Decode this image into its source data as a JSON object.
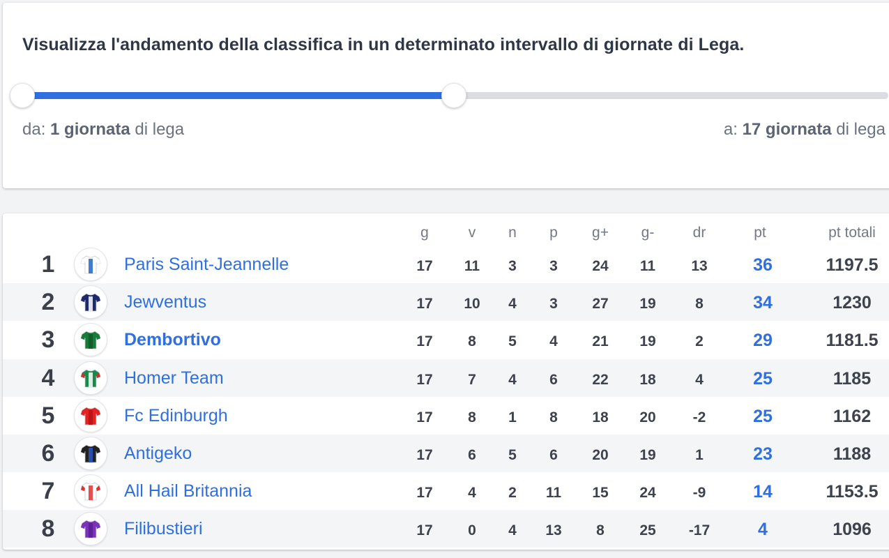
{
  "range": {
    "title": "Visualizza l'andamento della classifica in un determinato intervallo di giornate di Lega.",
    "from_prefix": "da: ",
    "from_value": "1 giornata",
    "from_suffix": " di lega",
    "to_prefix": "a: ",
    "to_value": "17 giornata",
    "to_suffix": " di lega",
    "selected_fraction": 0.5,
    "accent": "#2f6fe0"
  },
  "table": {
    "headers": {
      "g": "g",
      "v": "v",
      "n": "n",
      "p": "p",
      "gf": "g+",
      "ga": "g-",
      "dr": "dr",
      "pt": "pt",
      "tot": "pt totali"
    },
    "rows": [
      {
        "rank": "1",
        "team": "Paris Saint-Jeannelle",
        "g": "17",
        "v": "11",
        "n": "3",
        "p": "3",
        "gf": "24",
        "ga": "11",
        "dr": "13",
        "pt": "36",
        "tot": "1197.5",
        "kit": {
          "base": "#ffffff",
          "accent": "#1f66c7",
          "sleeve": "#ffffff"
        }
      },
      {
        "rank": "2",
        "team": "Jewventus",
        "g": "17",
        "v": "10",
        "n": "4",
        "p": "3",
        "gf": "27",
        "ga": "19",
        "dr": "8",
        "pt": "34",
        "tot": "1230",
        "kit": {
          "base": "#1e2a6a",
          "accent": "#ffffff",
          "sleeve": "#1e2a6a"
        }
      },
      {
        "rank": "3",
        "team": "Dembortivo",
        "g": "17",
        "v": "8",
        "n": "5",
        "p": "4",
        "gf": "21",
        "ga": "19",
        "dr": "2",
        "pt": "29",
        "tot": "1181.5",
        "kit": {
          "base": "#1a7a3a",
          "accent": "#0f5a28",
          "sleeve": "#1a7a3a"
        }
      },
      {
        "rank": "4",
        "team": "Homer Team",
        "g": "17",
        "v": "7",
        "n": "4",
        "p": "6",
        "gf": "22",
        "ga": "18",
        "dr": "4",
        "pt": "25",
        "tot": "1185",
        "kit": {
          "base": "#1a8a4a",
          "accent": "#ffffff",
          "sleeve": "#c8312f"
        }
      },
      {
        "rank": "5",
        "team": "Fc Edinburgh",
        "g": "17",
        "v": "8",
        "n": "1",
        "p": "8",
        "gf": "18",
        "ga": "20",
        "dr": "-2",
        "pt": "25",
        "tot": "1162",
        "kit": {
          "base": "#e32222",
          "accent": "#b51414",
          "sleeve": "#e32222"
        }
      },
      {
        "rank": "6",
        "team": "Antigeko",
        "g": "17",
        "v": "6",
        "n": "5",
        "p": "6",
        "gf": "20",
        "ga": "19",
        "dr": "1",
        "pt": "23",
        "tot": "1188",
        "kit": {
          "base": "#222222",
          "accent": "#2a56c4",
          "sleeve": "#222222"
        }
      },
      {
        "rank": "7",
        "team": "All Hail Britannia",
        "g": "17",
        "v": "4",
        "n": "2",
        "p": "11",
        "gf": "15",
        "ga": "24",
        "dr": "-9",
        "pt": "14",
        "tot": "1153.5",
        "kit": {
          "base": "#ffffff",
          "accent": "#e03030",
          "sleeve": "#e03030"
        }
      },
      {
        "rank": "8",
        "team": "Filibustieri",
        "g": "17",
        "v": "0",
        "n": "4",
        "p": "13",
        "gf": "8",
        "ga": "25",
        "dr": "-17",
        "pt": "4",
        "tot": "1096",
        "kit": {
          "base": "#7a32b8",
          "accent": "#5a1f90",
          "sleeve": "#7a32b8"
        }
      }
    ],
    "highlight_team": "Dembortivo"
  }
}
